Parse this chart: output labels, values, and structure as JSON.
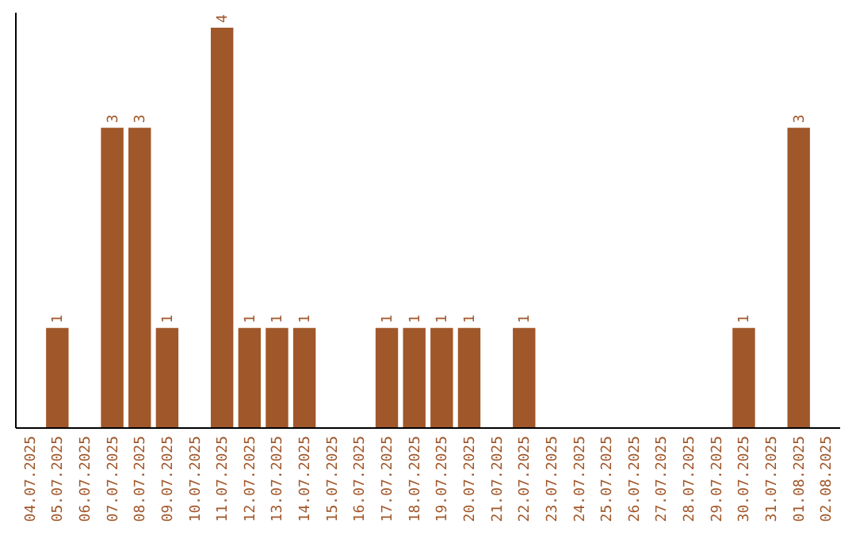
{
  "chart_data": {
    "type": "bar",
    "categories": [
      "04.07.2025",
      "05.07.2025",
      "06.07.2025",
      "07.07.2025",
      "08.07.2025",
      "09.07.2025",
      "10.07.2025",
      "11.07.2025",
      "12.07.2025",
      "13.07.2025",
      "14.07.2025",
      "15.07.2025",
      "16.07.2025",
      "17.07.2025",
      "18.07.2025",
      "19.07.2025",
      "20.07.2025",
      "21.07.2025",
      "22.07.2025",
      "23.07.2025",
      "24.07.2025",
      "25.07.2025",
      "26.07.2025",
      "27.07.2025",
      "28.07.2025",
      "29.07.2025",
      "30.07.2025",
      "31.07.2025",
      "01.08.2025",
      "02.08.2025"
    ],
    "values": [
      0,
      1,
      0,
      3,
      3,
      1,
      0,
      4,
      1,
      1,
      1,
      0,
      0,
      1,
      1,
      1,
      1,
      0,
      1,
      0,
      0,
      0,
      0,
      0,
      0,
      0,
      1,
      0,
      3,
      0
    ],
    "value_labels": [
      null,
      "1",
      null,
      "3",
      "3",
      "1",
      null,
      "4",
      "1",
      "1",
      "1",
      null,
      null,
      "1",
      "1",
      "1",
      "1",
      null,
      "1",
      null,
      null,
      null,
      null,
      null,
      null,
      null,
      "1",
      null,
      "3",
      null
    ],
    "color": "#a0572a",
    "ylim": [
      0,
      4.15
    ],
    "tick_labels": "x",
    "grid": false
  }
}
